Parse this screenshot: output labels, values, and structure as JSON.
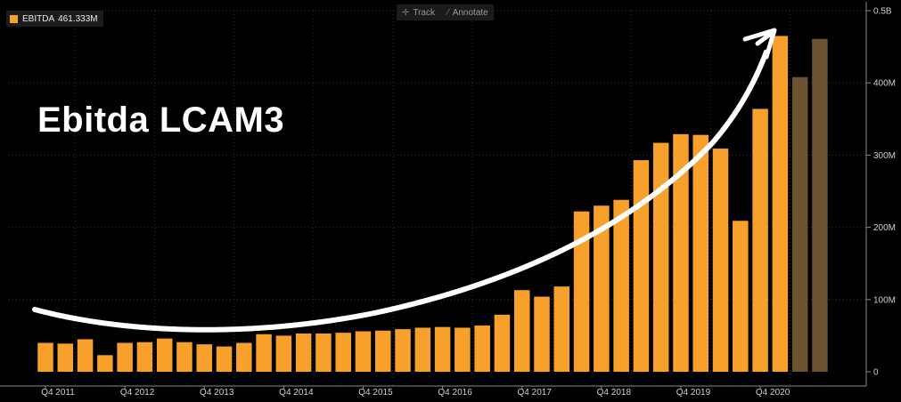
{
  "legend": {
    "label": "EBITDA",
    "value": "461.333M"
  },
  "toolbar": {
    "track_label": "Track",
    "annotate_label": "Annotate",
    "track_icon": "crosshair-icon",
    "annotate_icon": "pencil-icon"
  },
  "overlay_title": "Ebitda LCAM3",
  "colors": {
    "background": "#000000",
    "actual_bar": "#f7a12c",
    "estimate_bar": "#6b5231",
    "arrow": "#ffffff",
    "axis": "#8a8a8a"
  },
  "chart_data": {
    "type": "bar",
    "ylim": [
      0,
      500
    ],
    "y_unit": "M",
    "y_ticks": [
      {
        "value": 0,
        "label": "0"
      },
      {
        "value": 100,
        "label": "100M"
      },
      {
        "value": 200,
        "label": "200M"
      },
      {
        "value": 300,
        "label": "300M"
      },
      {
        "value": 400,
        "label": "400M"
      },
      {
        "value": 500,
        "label": "0.5B"
      }
    ],
    "x_ticks": [
      {
        "index": 0,
        "label": "Q4 2011"
      },
      {
        "index": 4,
        "label": "Q4 2012"
      },
      {
        "index": 8,
        "label": "Q4 2013"
      },
      {
        "index": 12,
        "label": "Q4 2014"
      },
      {
        "index": 16,
        "label": "Q4 2015"
      },
      {
        "index": 20,
        "label": "Q4 2016"
      },
      {
        "index": 24,
        "label": "Q4 2017"
      },
      {
        "index": 28,
        "label": "Q4 2018"
      },
      {
        "index": 32,
        "label": "Q4 2019"
      },
      {
        "index": 36,
        "label": "Q4 2020"
      }
    ],
    "series": [
      {
        "name": "EBITDA",
        "values": [
          40,
          39,
          45,
          23,
          40,
          41,
          46,
          41,
          38,
          35,
          40,
          52,
          50,
          53,
          53,
          54,
          56,
          57,
          59,
          61,
          62,
          61,
          64,
          79,
          113,
          104,
          118,
          222,
          230,
          238,
          293,
          317,
          329,
          328,
          309,
          209,
          364,
          465,
          408,
          461
        ],
        "estimate": [
          false,
          false,
          false,
          false,
          false,
          false,
          false,
          false,
          false,
          false,
          false,
          false,
          false,
          false,
          false,
          false,
          false,
          false,
          false,
          false,
          false,
          false,
          false,
          false,
          false,
          false,
          false,
          false,
          false,
          false,
          false,
          false,
          false,
          false,
          false,
          false,
          false,
          false,
          true,
          true
        ]
      }
    ],
    "grid": true,
    "legend_position": "top-left"
  }
}
